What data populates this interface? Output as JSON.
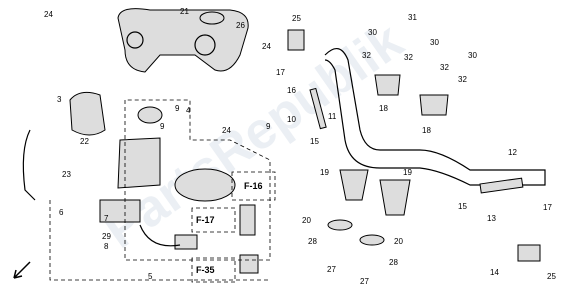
{
  "watermark": "PartsRepublik",
  "callouts": [
    "24",
    "21",
    "26",
    "25",
    "30",
    "31",
    "30",
    "32",
    "32",
    "30",
    "32",
    "32",
    "24",
    "17",
    "16",
    "18",
    "18",
    "3",
    "9",
    "9",
    "4",
    "24",
    "9",
    "10",
    "11",
    "22",
    "15",
    "12",
    "23",
    "19",
    "19",
    "13",
    "15",
    "17",
    "6",
    "7",
    "8",
    "29",
    "F-16",
    "F-17",
    "F-35",
    "20",
    "20",
    "28",
    "28",
    "27",
    "27",
    "14",
    "25",
    "5"
  ]
}
